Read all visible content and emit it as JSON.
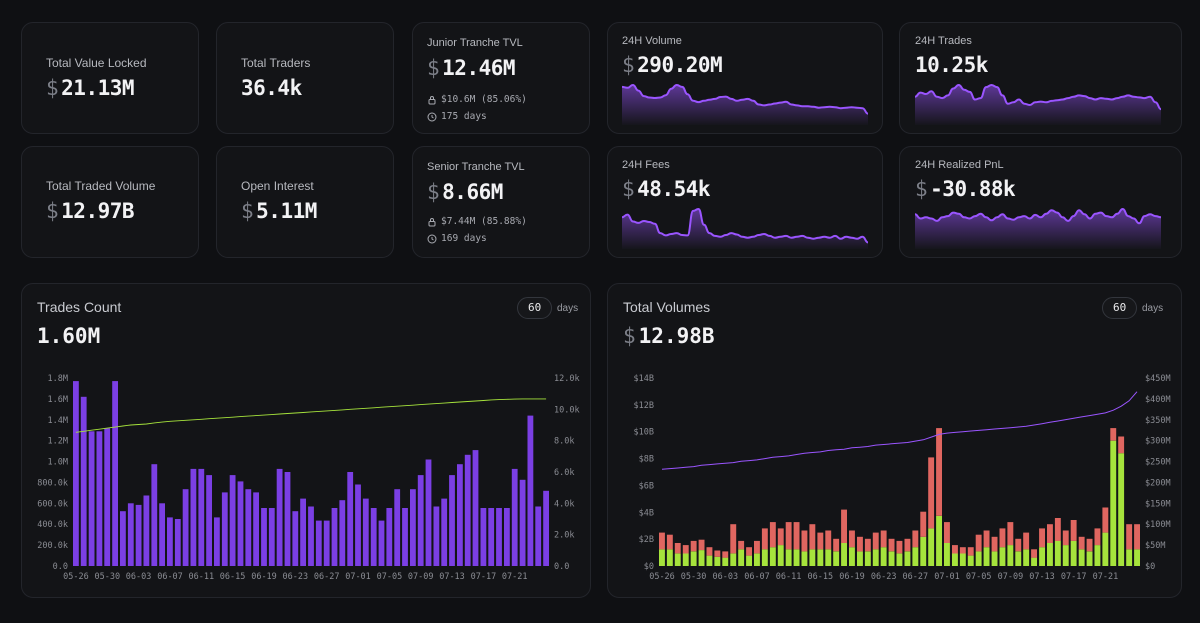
{
  "stats": {
    "tvl": {
      "label": "Total Value Locked",
      "currency": "$",
      "value": "21.13M"
    },
    "traders": {
      "label": "Total Traders",
      "value": "36.4k"
    },
    "junior": {
      "label": "Junior Tranche TVL",
      "currency": "$",
      "value": "12.46M",
      "detail": "$10.6M (85.06%)",
      "days": "175 days"
    },
    "volume24": {
      "label": "24H Volume",
      "currency": "$",
      "value": "290.20M",
      "spark": [
        78,
        76,
        82,
        70,
        58,
        55,
        54,
        55,
        60,
        74,
        82,
        78,
        62,
        48,
        45,
        48,
        50,
        52,
        56,
        57,
        52,
        48,
        50,
        52,
        48,
        40,
        38,
        40,
        42,
        44,
        46,
        40,
        38,
        36,
        36,
        35,
        33,
        34,
        35,
        34,
        32,
        33,
        34,
        33,
        32,
        20
      ]
    },
    "trades24": {
      "label": "24H Trades",
      "value": "10.25k",
      "spark": [
        38,
        44,
        42,
        46,
        38,
        36,
        40,
        50,
        55,
        48,
        45,
        34,
        36,
        52,
        55,
        52,
        40,
        28,
        30,
        34,
        28,
        26,
        30,
        31,
        30,
        32,
        33,
        34,
        36,
        38,
        40,
        39,
        36,
        34,
        36,
        35,
        34,
        36,
        38,
        40,
        38,
        37,
        36,
        38,
        30,
        20
      ]
    },
    "fees24": {
      "label": "24H Fees",
      "currency": "$",
      "value": "48.54k",
      "spark": [
        64,
        70,
        55,
        52,
        56,
        54,
        50,
        30,
        25,
        28,
        30,
        26,
        25,
        78,
        82,
        48,
        30,
        24,
        22,
        26,
        30,
        27,
        22,
        20,
        22,
        26,
        28,
        24,
        20,
        22,
        24,
        20,
        22,
        24,
        20,
        18,
        20,
        22,
        20,
        24,
        18,
        22,
        20,
        18,
        22,
        10
      ]
    },
    "pnl24": {
      "label": "24H Realized PnL",
      "currency": "$",
      "value": "-30.88k",
      "spark": [
        55,
        48,
        50,
        48,
        44,
        50,
        52,
        58,
        56,
        50,
        48,
        52,
        56,
        50,
        45,
        50,
        55,
        48,
        46,
        50,
        52,
        48,
        54,
        50,
        56,
        62,
        58,
        50,
        44,
        52,
        62,
        55,
        48,
        56,
        58,
        52,
        50,
        56,
        64,
        52,
        48,
        40,
        52,
        55,
        52,
        50
      ]
    },
    "traded": {
      "label": "Total Traded Volume",
      "currency": "$",
      "value": "12.97B"
    },
    "oi": {
      "label": "Open Interest",
      "currency": "$",
      "value": "5.11M"
    },
    "senior": {
      "label": "Senior Tranche TVL",
      "currency": "$",
      "value": "8.66M",
      "detail": "$7.44M (85.88%)",
      "days": "169 days"
    }
  },
  "trades_panel": {
    "title": "Trades Count",
    "value": "1.60M",
    "range": "60",
    "unit": "days"
  },
  "volumes_panel": {
    "title": "Total Volumes",
    "currency": "$",
    "value": "12.98B",
    "range": "60",
    "unit": "days"
  },
  "colors": {
    "purple": "#7b3fe4",
    "line_purple": "#9a55ff",
    "green": "#a6e33c",
    "red": "#e06660",
    "cum_green": "#a6e33c"
  },
  "chart_data": [
    {
      "type": "bar",
      "title": "Trades Count",
      "x_tick_labels": [
        "05-26",
        "05-30",
        "06-03",
        "06-07",
        "06-11",
        "06-15",
        "06-19",
        "06-23",
        "06-27",
        "07-01",
        "07-05",
        "07-09",
        "07-13",
        "07-17",
        "07-21"
      ],
      "y_left_ticks": [
        "0.0",
        "200.0k",
        "400.0k",
        "600.0k",
        "800.0k",
        "1.0M",
        "1.2M",
        "1.4M",
        "1.6M",
        "1.8M"
      ],
      "y_right_ticks": [
        "0.0",
        "2.0k",
        "4.0k",
        "6.0k",
        "8.0k",
        "10.0k",
        "12.0k"
      ],
      "ylim_left": [
        0,
        1800000
      ],
      "ylim_right": [
        0,
        12000
      ],
      "grid": false,
      "series": [
        {
          "type": "bar",
          "axis": "right",
          "values": [
            11800,
            10800,
            8600,
            8600,
            8800,
            11800,
            3500,
            4000,
            3900,
            4500,
            6500,
            4000,
            3100,
            3000,
            4900,
            6200,
            6200,
            5800,
            3100,
            4700,
            5800,
            5400,
            4900,
            4700,
            3700,
            3700,
            6200,
            6000,
            3500,
            4300,
            3800,
            2900,
            2900,
            3700,
            4200,
            6000,
            5200,
            4300,
            3700,
            2900,
            3700,
            4900,
            3700,
            4900,
            5800,
            6800,
            3800,
            4300,
            5800,
            6500,
            7100,
            7400,
            3700,
            3700,
            3700,
            3700,
            6200,
            5500,
            9600,
            3800,
            4800
          ]
        },
        {
          "type": "line",
          "axis": "left",
          "values": [
            1280000,
            1290000,
            1300000,
            1310000,
            1320000,
            1330000,
            1340000,
            1350000,
            1355000,
            1360000,
            1370000,
            1378000,
            1385000,
            1390000,
            1395000,
            1400000,
            1405000,
            1410000,
            1415000,
            1420000,
            1425000,
            1430000,
            1435000,
            1440000,
            1445000,
            1450000,
            1455000,
            1460000,
            1465000,
            1470000,
            1475000,
            1480000,
            1485000,
            1490000,
            1495000,
            1500000,
            1505000,
            1510000,
            1515000,
            1520000,
            1525000,
            1530000,
            1535000,
            1540000,
            1545000,
            1550000,
            1555000,
            1560000,
            1565000,
            1570000,
            1575000,
            1580000,
            1585000,
            1590000,
            1593000,
            1596000,
            1598000,
            1600000,
            1600000,
            1600000,
            1600000
          ]
        }
      ]
    },
    {
      "type": "bar",
      "title": "Total Volumes",
      "x_tick_labels": [
        "05-26",
        "05-30",
        "06-03",
        "06-07",
        "06-11",
        "06-15",
        "06-19",
        "06-23",
        "06-27",
        "07-01",
        "07-05",
        "07-09",
        "07-13",
        "07-17",
        "07-21"
      ],
      "y_left_ticks": [
        "$0",
        "$2B",
        "$4B",
        "$6B",
        "$8B",
        "$10B",
        "$12B",
        "$14B"
      ],
      "y_right_ticks": [
        "$0",
        "$50M",
        "$100M",
        "$150M",
        "$200M",
        "$250M",
        "$300M",
        "$350M",
        "$400M",
        "$450M"
      ],
      "ylim_left": [
        0,
        14
      ],
      "ylim_right": [
        0,
        450
      ],
      "grid": false,
      "series": [
        {
          "name": "long",
          "type": "bar",
          "axis": "right",
          "stacked": true,
          "values": [
            40,
            40,
            30,
            30,
            35,
            38,
            25,
            22,
            20,
            30,
            40,
            25,
            30,
            40,
            45,
            50,
            40,
            40,
            35,
            40,
            40,
            40,
            35,
            55,
            45,
            35,
            35,
            40,
            45,
            35,
            30,
            35,
            45,
            70,
            90,
            120,
            55,
            30,
            30,
            25,
            35,
            45,
            35,
            45,
            50,
            35,
            40,
            20,
            45,
            55,
            60,
            50,
            60,
            40,
            35,
            50,
            80,
            300,
            270,
            40,
            40
          ]
        },
        {
          "name": "short",
          "type": "bar",
          "axis": "right",
          "stacked": true,
          "values": [
            40,
            35,
            25,
            20,
            25,
            25,
            20,
            15,
            15,
            70,
            20,
            20,
            30,
            50,
            60,
            40,
            65,
            65,
            50,
            60,
            40,
            45,
            30,
            80,
            40,
            35,
            30,
            40,
            40,
            30,
            30,
            30,
            40,
            60,
            170,
            210,
            50,
            20,
            15,
            20,
            40,
            40,
            35,
            45,
            55,
            30,
            40,
            20,
            45,
            45,
            55,
            35,
            50,
            30,
            30,
            40,
            60,
            30,
            40,
            60,
            60
          ]
        },
        {
          "type": "line",
          "axis": "left",
          "values": [
            7.2,
            7.25,
            7.3,
            7.35,
            7.4,
            7.5,
            7.55,
            7.6,
            7.65,
            7.7,
            7.8,
            7.85,
            7.9,
            8.0,
            8.1,
            8.15,
            8.2,
            8.3,
            8.4,
            8.45,
            8.5,
            8.6,
            8.65,
            8.7,
            8.8,
            8.85,
            8.9,
            9.0,
            9.05,
            9.1,
            9.15,
            9.2,
            9.3,
            9.4,
            9.6,
            9.8,
            9.9,
            9.95,
            10.0,
            10.05,
            10.1,
            10.15,
            10.2,
            10.25,
            10.3,
            10.35,
            10.4,
            10.5,
            10.6,
            10.7,
            10.8,
            10.9,
            11.0,
            11.1,
            11.2,
            11.3,
            11.4,
            11.6,
            11.9,
            12.3,
            12.98
          ]
        }
      ]
    }
  ]
}
